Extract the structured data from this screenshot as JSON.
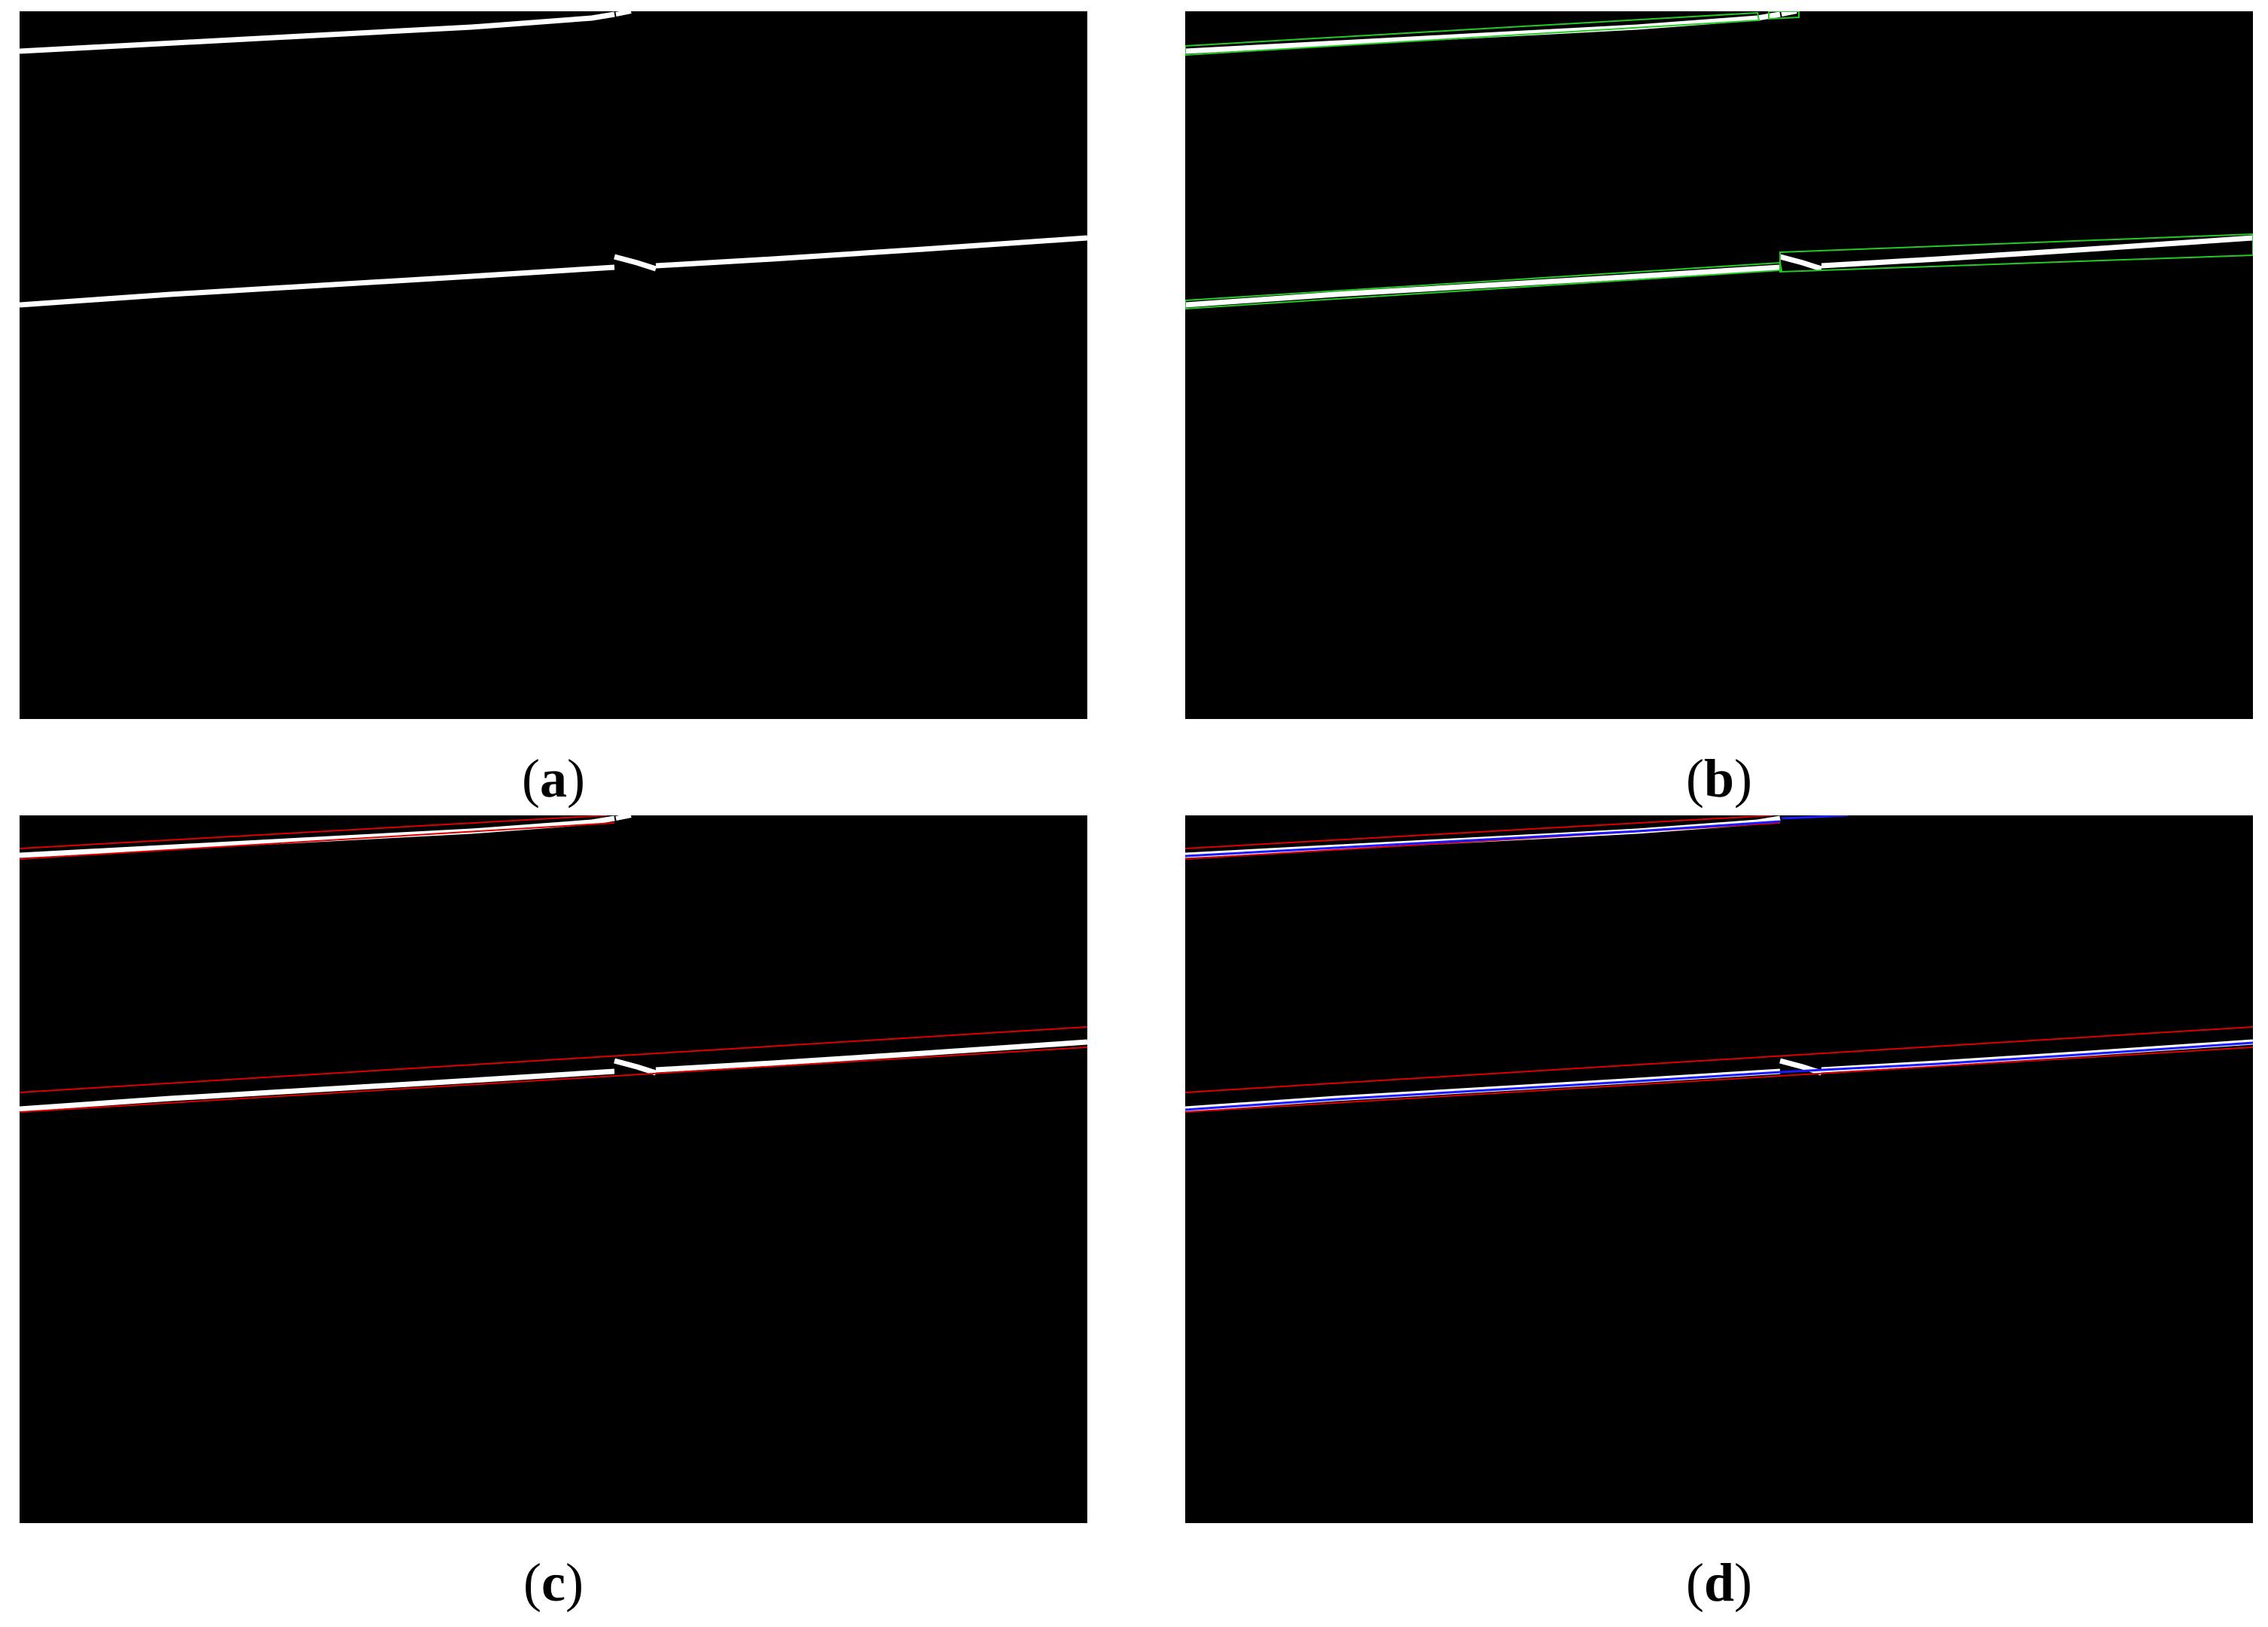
{
  "figure": {
    "panels": [
      {
        "id": "a",
        "label": "a",
        "overlay": "none"
      },
      {
        "id": "b",
        "label": "b",
        "overlay": "bounding-boxes"
      },
      {
        "id": "c",
        "label": "c",
        "overlay": "red-line-fit"
      },
      {
        "id": "d",
        "label": "d",
        "overlay": "red-and-blue-line-fit"
      }
    ]
  },
  "colors": {
    "background": "#000000",
    "crack": "#ffffff",
    "green_overlay": "#22cc22",
    "red_overlay": "#dd0000",
    "blue_overlay": "#1a1aff",
    "page": "#ffffff"
  }
}
